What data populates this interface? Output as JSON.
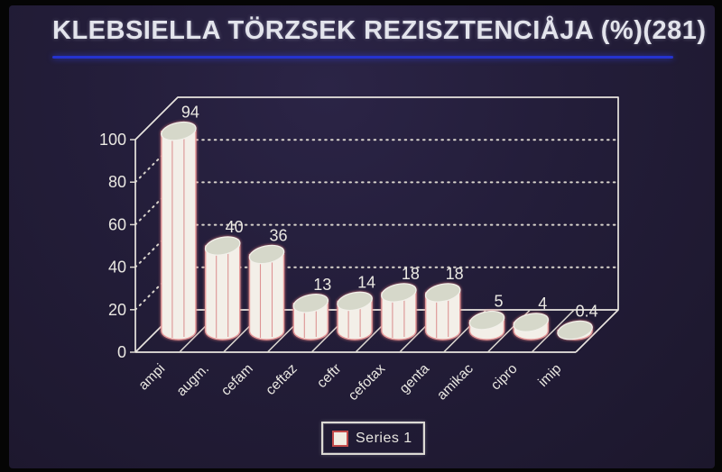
{
  "title": "KLEBSIELLA TÖRZSEK REZISZTENCIÅJA (%)(281)",
  "legend": {
    "label": "Series 1",
    "position": "bottom-center"
  },
  "colors": {
    "slide_background": "#231d39",
    "photo_frame": "#050505",
    "title_text": "#e3e4ec",
    "title_underline_blue": "#2533cf",
    "chart_lines": "#e9e5df",
    "bar_fill": "#f3efe8",
    "bar_top_fill": "#d6d8ca",
    "bar_outline_pink": "#e59a9a",
    "legend_marker_border_red": "#c24b4b"
  },
  "chart_data": {
    "type": "bar",
    "style": "3d-cylinder-oblique",
    "title": "KLEBSIELLA TÖRZSEK REZISZTENCIÅJA (%)(281)",
    "categories": [
      "ampi",
      "augm.",
      "cefam",
      "ceftaz",
      "ceftr",
      "cefotax",
      "genta",
      "amikac",
      "cipro",
      "imip"
    ],
    "series": [
      {
        "name": "Series 1",
        "values": [
          94,
          40,
          36,
          13,
          14,
          18,
          18,
          5,
          4,
          0.4
        ]
      }
    ],
    "value_labels": [
      "94",
      "40",
      "36",
      "13",
      "14",
      "18",
      "18",
      "5",
      "4",
      "0.4"
    ],
    "xlabel": "",
    "ylabel": "",
    "ylim": [
      0,
      100
    ],
    "yticks": [
      0,
      20,
      40,
      60,
      80,
      100
    ],
    "gridlines": [
      20,
      40,
      60,
      80
    ],
    "grid": "dotted",
    "legend_position": "bottom-center"
  }
}
